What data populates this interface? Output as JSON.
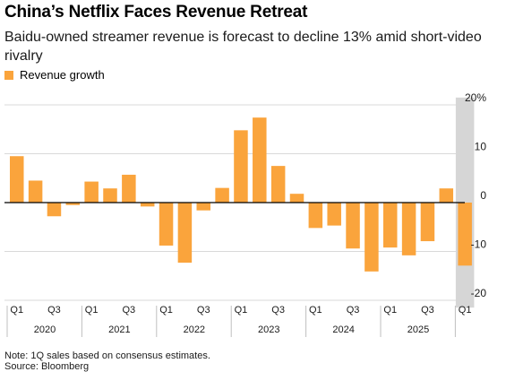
{
  "title": "China’s Netflix Faces Revenue Retreat",
  "subtitle": "Baidu-owned streamer revenue is forecast to decline 13% amid short-video rivalry",
  "note": "Note: 1Q sales based on consensus estimates.",
  "source": "Source: Bloomberg",
  "colors": {
    "bar": "#FAA43C",
    "forecast_band": "#D6D6D6",
    "zero_line": "#000000",
    "grid": "#D9D9D9"
  },
  "chart_data": {
    "type": "bar",
    "categories": [
      "1Q2020",
      "2Q2020",
      "3Q2020",
      "4Q2020",
      "1Q2021",
      "2Q2021",
      "3Q2021",
      "4Q2021",
      "1Q2022",
      "2Q2022",
      "3Q2022",
      "4Q2022",
      "1Q2023",
      "2Q2023",
      "3Q2023",
      "4Q2023",
      "1Q2024",
      "2Q2024",
      "3Q2024",
      "4Q2024",
      "1Q2025",
      "2Q2025",
      "3Q2025",
      "4Q2025",
      "1Q2026"
    ],
    "series": [
      {
        "name": "Revenue growth",
        "values": [
          9.5,
          4.5,
          -2.8,
          -0.5,
          4.3,
          2.9,
          5.7,
          -0.8,
          -8.8,
          -12.3,
          -1.6,
          3.0,
          14.8,
          17.4,
          7.5,
          1.8,
          -5.2,
          -4.7,
          -9.4,
          -14.1,
          -9.2,
          -10.8,
          -7.9,
          2.9,
          -12.9
        ]
      }
    ],
    "x_ticks": [
      "Q1",
      "Q3",
      "Q1",
      "Q3",
      "Q1",
      "Q3",
      "Q1",
      "Q3",
      "Q1",
      "Q3",
      "Q1",
      "Q3",
      "Q1"
    ],
    "x_tick_quarters": [
      0,
      2,
      4,
      6,
      8,
      10,
      12,
      14,
      16,
      18,
      20,
      22,
      24
    ],
    "years": [
      "2020",
      "2021",
      "2022",
      "2023",
      "2024",
      "2025"
    ],
    "y_ticks": [
      "20%",
      "10",
      "0",
      "-10",
      "-20"
    ],
    "y_tick_values": [
      20,
      10,
      0,
      -10,
      -20
    ],
    "ylim": [
      -21,
      21
    ],
    "forecast_index": 24,
    "legend_position": "top-left",
    "grid": true
  }
}
